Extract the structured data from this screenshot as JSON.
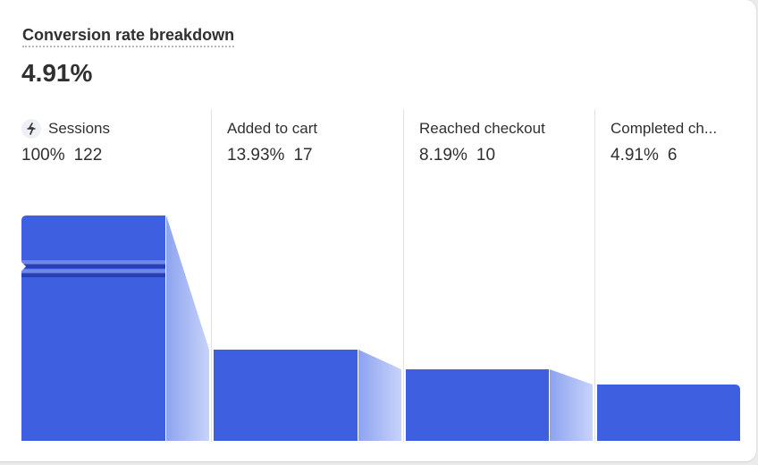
{
  "card": {
    "title": "Conversion rate breakdown",
    "value": "4.91%"
  },
  "steps": [
    {
      "label": "Sessions",
      "percent": "100%",
      "count": "122",
      "icon": "sessions-funnel-icon"
    },
    {
      "label": "Added to cart",
      "percent": "13.93%",
      "count": "17"
    },
    {
      "label": "Reached checkout",
      "percent": "8.19%",
      "count": "10"
    },
    {
      "label": "Completed ch...",
      "percent": "4.91%",
      "count": "6"
    }
  ],
  "colors": {
    "bar": "#3d5fe0",
    "bar_dark": "#2a3fb0",
    "connector_from": "#8ea3f0",
    "connector_to": "#c7d3fa",
    "divider": "#e3e3e3"
  }
}
